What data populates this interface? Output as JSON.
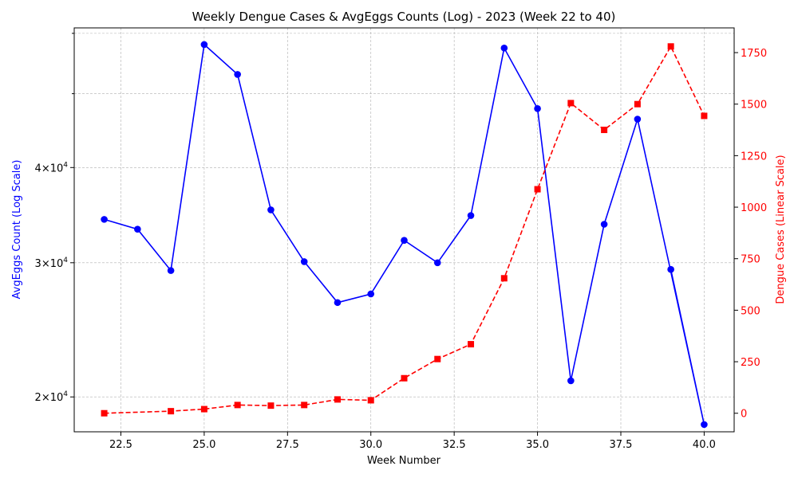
{
  "chart_data": {
    "type": "line",
    "title": "Weekly Dengue Cases & AvgEggs Counts (Log) - 2023 (Week 22 to 40)",
    "xlabel": "Week Number",
    "ylabel_left": "AvgEggs Count (Log Scale)",
    "ylabel_right": "Dengue Cases (Linear Scale)",
    "xlim": [
      21.1,
      40.9
    ],
    "ylim_left": [
      18000,
      61000
    ],
    "ylim_right": [
      -90,
      1870
    ],
    "left_scale": "log",
    "right_scale": "linear",
    "grid": true,
    "x_ticks": [
      22.5,
      25.0,
      27.5,
      30.0,
      32.5,
      35.0,
      37.5,
      40.0
    ],
    "x_tick_labels": [
      "22.5",
      "25.0",
      "27.5",
      "30.0",
      "32.5",
      "35.0",
      "37.5",
      "40.0"
    ],
    "left_major_ticks": [
      20000,
      30000,
      40000
    ],
    "left_major_labels": [
      {
        "base": "2",
        "mantissa": "×10",
        "exp": "4"
      },
      {
        "base": "3",
        "mantissa": "×10",
        "exp": "4"
      },
      {
        "base": "4",
        "mantissa": "×10",
        "exp": "4"
      }
    ],
    "left_minor_ticks": [
      50000,
      60000
    ],
    "right_ticks": [
      0,
      250,
      500,
      750,
      1000,
      1250,
      1500,
      1750
    ],
    "right_tick_labels": [
      "0",
      "250",
      "500",
      "750",
      "1000",
      "1250",
      "1500",
      "1750"
    ],
    "series": [
      {
        "axis": "left",
        "color": "#0000ff",
        "style": "solid",
        "marker": "circle",
        "x": [
          22,
          23,
          24,
          25,
          26,
          27,
          28,
          29,
          30,
          31,
          32,
          33,
          34,
          35,
          36,
          37,
          38,
          40,
          39
        ],
        "y": [
          34200,
          33200,
          29300,
          58000,
          53000,
          35200,
          30100,
          26600,
          27300,
          32100,
          30000,
          34600,
          57400,
          47800,
          21000,
          33700,
          46300,
          18400,
          29400
        ]
      },
      {
        "axis": "right",
        "color": "#ff0000",
        "style": "dashed",
        "marker": "square",
        "x": [
          22,
          24,
          25,
          26,
          27,
          28,
          29,
          30,
          31,
          32,
          33,
          34,
          35,
          36,
          37,
          38,
          39,
          40
        ],
        "y": [
          0,
          10,
          20,
          40,
          37,
          40,
          67,
          63,
          170,
          263,
          335,
          655,
          1087,
          1505,
          1375,
          1500,
          1780,
          1443
        ]
      }
    ]
  }
}
